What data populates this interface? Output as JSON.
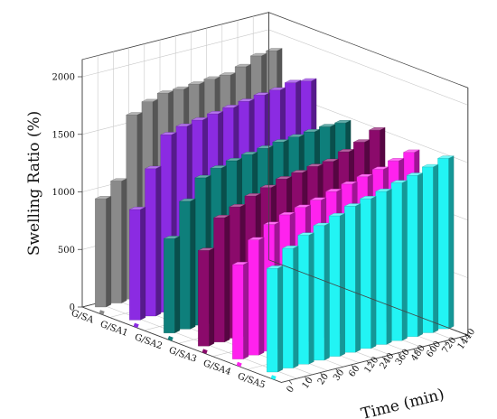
{
  "chart_data": {
    "type": "bar",
    "subtype": "3d-grouped",
    "title": "",
    "ylabel": "Swelling Ratio (%)",
    "xlabel": "Time (min)",
    "zlabel": "",
    "ylim": [
      0,
      2150
    ],
    "y_ticks": [
      0,
      500,
      1000,
      1500,
      2000
    ],
    "x_ticks": [
      "0",
      "10",
      "20",
      "30",
      "60",
      "120",
      "240",
      "360",
      "480",
      "600",
      "720",
      "1440"
    ],
    "categories": [
      "G/SA",
      "G/SA1",
      "G/SA2",
      "G/SA3",
      "G/SA4",
      "G/SA5"
    ],
    "x": [
      0,
      10,
      20,
      30,
      60,
      120,
      240,
      360,
      480,
      600,
      720,
      1440
    ],
    "grid": true,
    "series": [
      {
        "name": "G/SA",
        "color": "#8a8a8a",
        "values": [
          940,
          1060,
          1600,
          1680,
          1720,
          1720,
          1730,
          1740,
          1740,
          1780,
          1840,
          1850
        ]
      },
      {
        "name": "G/SA1",
        "color": "#8b2be2",
        "values": [
          960,
          1280,
          1540,
          1580,
          1600,
          1620,
          1640,
          1660,
          1680,
          1690,
          1720,
          1700
        ]
      },
      {
        "name": "G/SA2",
        "color": "#0e7f7b",
        "values": [
          820,
          1110,
          1280,
          1330,
          1360,
          1380,
          1400,
          1420,
          1430,
          1440,
          1450,
          1450
        ]
      },
      {
        "name": "G/SA3",
        "color": "#8b0a6b",
        "values": [
          830,
          1080,
          1140,
          1200,
          1240,
          1280,
          1300,
          1320,
          1330,
          1380,
          1430,
          1500
        ]
      },
      {
        "name": "G/SA4",
        "color": "#ff22ee",
        "values": [
          820,
          1000,
          1100,
          1150,
          1180,
          1210,
          1250,
          1280,
          1310,
          1340,
          1380,
          1420
        ]
      },
      {
        "name": "G/SA5",
        "color": "#22f4f4",
        "values": [
          900,
          1040,
          1120,
          1170,
          1220,
          1270,
          1300,
          1330,
          1370,
          1400,
          1440,
          1480
        ]
      }
    ]
  }
}
